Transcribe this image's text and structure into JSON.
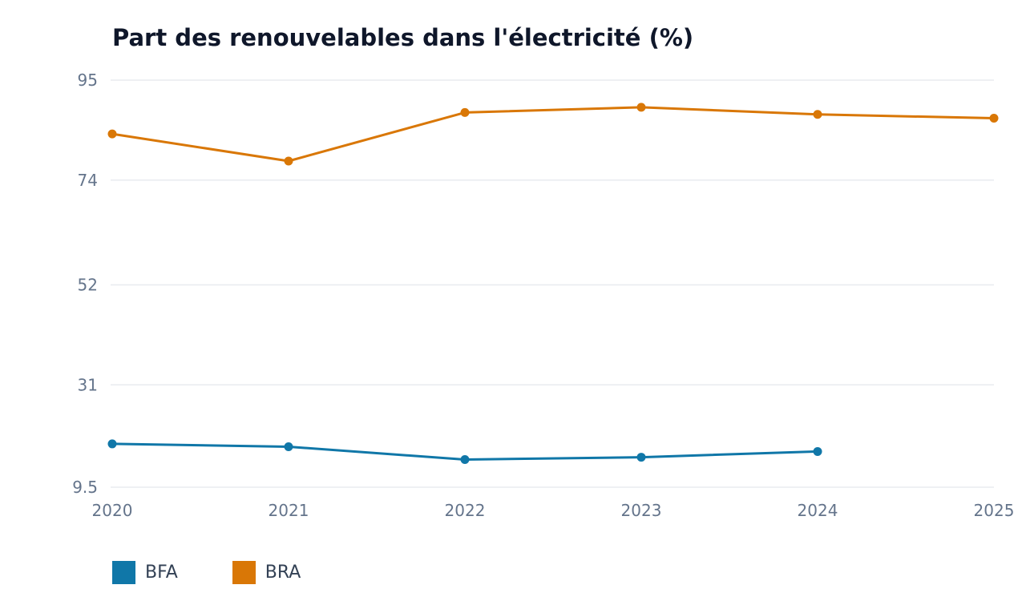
{
  "chart_data": {
    "type": "line",
    "title": "Part des renouvelables dans l'électricité (%)",
    "xlabel": "",
    "ylabel": "",
    "x": [
      2020,
      2021,
      2022,
      2023,
      2024,
      2025
    ],
    "x_tick_labels": [
      "2020",
      "2021",
      "2022",
      "2023",
      "2024",
      "2025"
    ],
    "y_tick_labels": [
      "95",
      "74",
      "52",
      "31",
      "9.5"
    ],
    "y_ticks": [
      95,
      74,
      52,
      31,
      9.5
    ],
    "ylim": [
      9.5,
      95
    ],
    "xlim": [
      2020,
      2025
    ],
    "grid": true,
    "legend_position": "bottom-left",
    "series": [
      {
        "name": "BFA",
        "color": "#1077a8",
        "values": [
          18.6,
          18.0,
          15.3,
          15.8,
          17.0,
          null
        ]
      },
      {
        "name": "BRA",
        "color": "#d97706",
        "values": [
          83.7,
          78.0,
          88.2,
          89.3,
          87.8,
          87.0
        ]
      }
    ]
  }
}
